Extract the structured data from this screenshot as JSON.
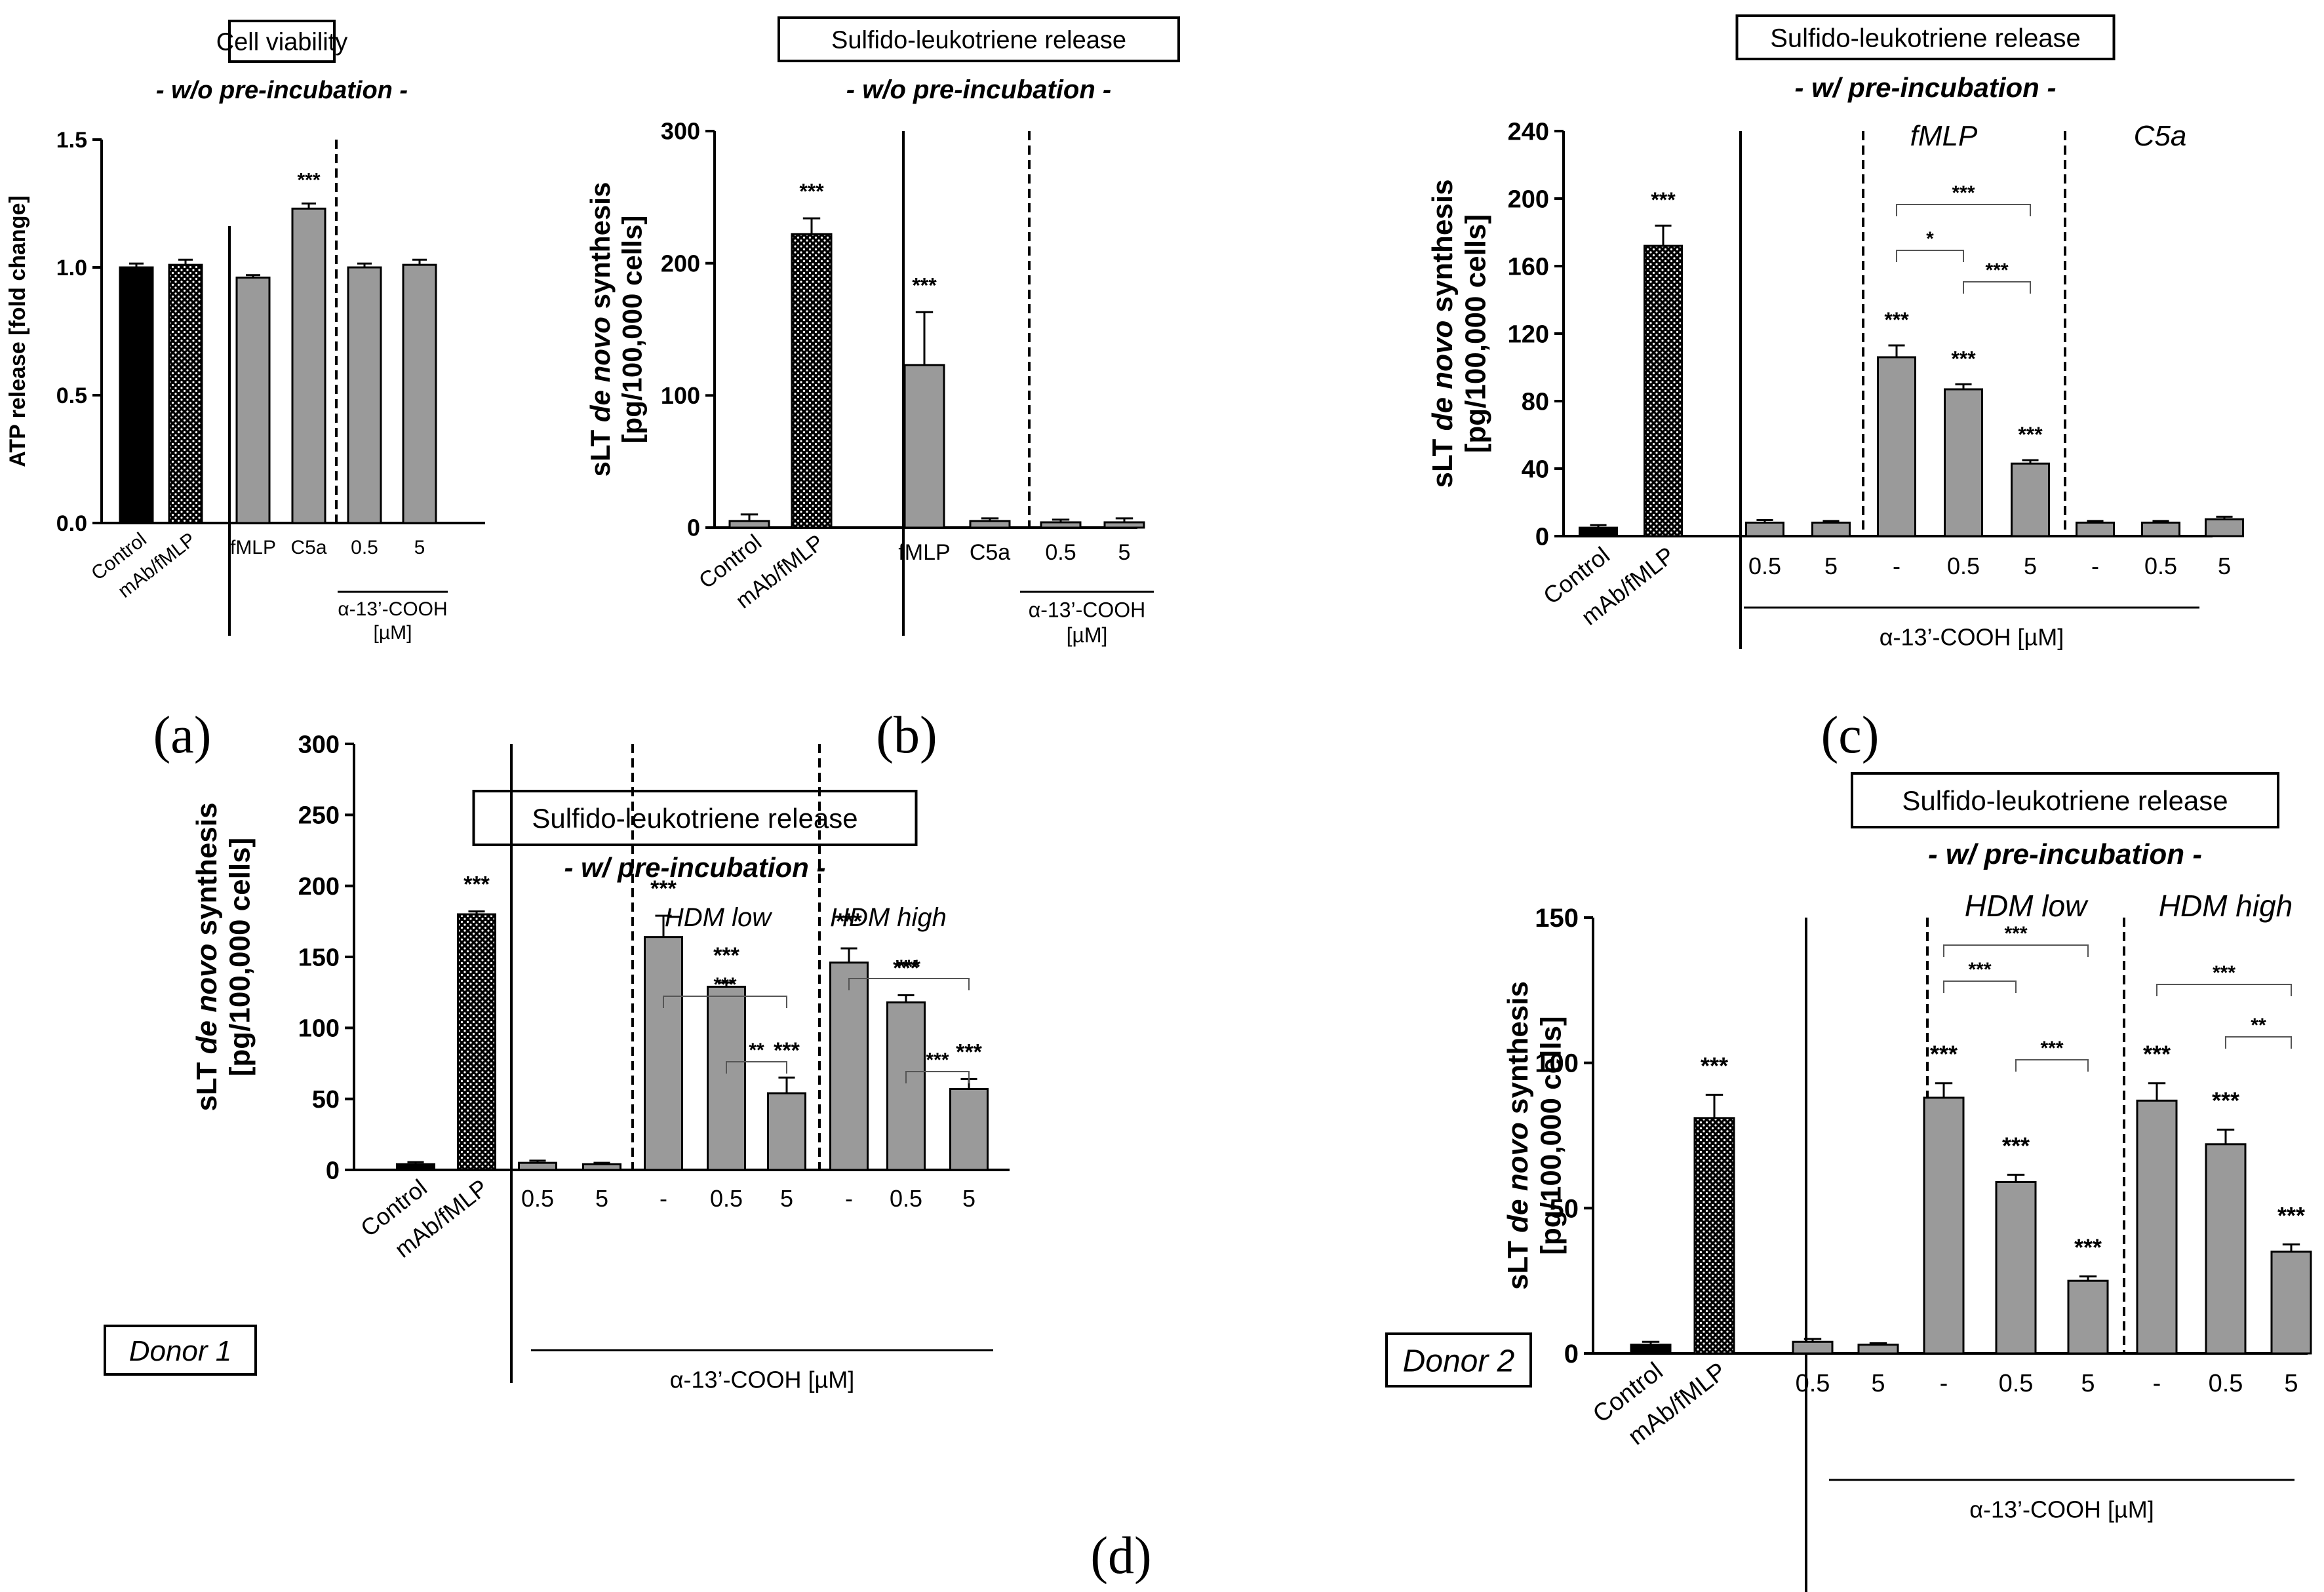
{
  "panel_labels": [
    "(a)",
    "(b)",
    "(c)",
    "(d)"
  ],
  "colors": {
    "black_bar": "#000000",
    "grey_bar": "#9a9a9a",
    "hatched_bar": "#000000",
    "axis": "#000000"
  },
  "chart_data": [
    {
      "id": "a",
      "type": "bar",
      "title": "Cell viability",
      "subtitle": "- w/o pre-incubation -",
      "ylabel": "ATP release [fold change]",
      "ylim": [
        0,
        1.5
      ],
      "yticks": [
        0.0,
        0.5,
        1.0,
        1.5
      ],
      "ytick_labels": [
        "0.0",
        "0.5",
        "1.0",
        "1.5"
      ],
      "categories": [
        "Control",
        "mAb/fMLP",
        "fMLP",
        "C5a",
        "0.5",
        "5"
      ],
      "values": [
        1.0,
        1.01,
        0.96,
        1.23,
        1.0,
        1.01
      ],
      "errors": [
        0.015,
        0.02,
        0.01,
        0.02,
        0.015,
        0.02
      ],
      "styles": [
        "black",
        "hatched",
        "grey",
        "grey",
        "grey",
        "grey"
      ],
      "rotated_labels": [
        true,
        true,
        false,
        false,
        false,
        false
      ],
      "significance": [
        "",
        "",
        "",
        "***",
        "",
        ""
      ],
      "group_label": "α-13’-COOH\n[µM]",
      "group_label_lines": [
        "α-13’-COOH",
        "[µM]"
      ],
      "grid": false
    },
    {
      "id": "b",
      "type": "bar",
      "title": "Sulfido-leukotriene release",
      "subtitle": "- w/o pre-incubation -",
      "ylabel_lines": [
        "sLT de novo synthesis",
        "[pg/100,000 cells]"
      ],
      "ylim": [
        0,
        300
      ],
      "yticks": [
        0,
        100,
        200,
        300
      ],
      "ytick_labels": [
        "0",
        "100",
        "200",
        "300"
      ],
      "categories": [
        "Control",
        "mAb/fMLP",
        "fMLP",
        "C5a",
        "0.5",
        "5"
      ],
      "values": [
        5,
        222,
        123,
        5,
        4,
        4
      ],
      "errors": [
        5,
        12,
        40,
        2,
        2,
        3
      ],
      "styles": [
        "grey",
        "hatched",
        "grey",
        "grey",
        "grey",
        "grey"
      ],
      "rotated_labels": [
        true,
        true,
        false,
        false,
        false,
        false
      ],
      "significance": [
        "",
        "***",
        "***",
        "",
        "",
        ""
      ],
      "group_label_lines": [
        "α-13’-COOH",
        "[µM]"
      ],
      "grid": false
    },
    {
      "id": "c",
      "type": "bar",
      "title": "Sulfido-leukotriene release",
      "subtitle": "- w/ pre-incubation -",
      "ylabel_lines": [
        "sLT de novo synthesis",
        "[pg/100,000 cells]"
      ],
      "ylim": [
        0,
        240
      ],
      "yticks": [
        0,
        40,
        80,
        120,
        160,
        200,
        240
      ],
      "ytick_labels": [
        "0",
        "40",
        "80",
        "120",
        "160",
        "200",
        "240"
      ],
      "categories": [
        "Control",
        "mAb/fMLP",
        "0.5",
        "5",
        "-",
        "0.5",
        "5",
        "-",
        "0.5",
        "5"
      ],
      "values": [
        5,
        172,
        8,
        8,
        106,
        87,
        43,
        8,
        8,
        10
      ],
      "errors": [
        1.5,
        12,
        1.5,
        1,
        7,
        3,
        2,
        1,
        1,
        1.5
      ],
      "styles": [
        "black",
        "hatched",
        "grey",
        "grey",
        "grey",
        "grey",
        "grey",
        "grey",
        "grey",
        "grey"
      ],
      "rotated_labels": [
        true,
        true,
        false,
        false,
        false,
        false,
        false,
        false,
        false,
        false
      ],
      "significance": [
        "",
        "***",
        "",
        "",
        "***",
        "***",
        "***",
        "",
        "",
        ""
      ],
      "section_labels": [
        "fMLP",
        "C5a"
      ],
      "brackets": [
        {
          "from": 4,
          "to": 6,
          "label": "***"
        },
        {
          "from": 4,
          "to": 5,
          "label": "*"
        },
        {
          "from": 5,
          "to": 6,
          "label": "***"
        }
      ],
      "group_label": "α-13’-COOH [µM]",
      "grid": false
    },
    {
      "id": "d1",
      "type": "bar",
      "title": "Sulfido-leukotriene release",
      "subtitle": "- w/ pre-incubation -",
      "donor": "Donor 1",
      "ylabel_lines": [
        "sLT de novo synthesis",
        "[pg/100,000 cells]"
      ],
      "ylim": [
        0,
        300
      ],
      "yticks": [
        0,
        50,
        100,
        150,
        200,
        250,
        300
      ],
      "ytick_labels": [
        "0",
        "50",
        "100",
        "150",
        "200",
        "250",
        "300"
      ],
      "categories": [
        "Control",
        "mAb/fMLP",
        "0.5",
        "5",
        "-",
        "0.5",
        "5",
        "-",
        "0.5",
        "5"
      ],
      "values": [
        4,
        180,
        5,
        4,
        164,
        129,
        54,
        146,
        118,
        57
      ],
      "errors": [
        1.5,
        2,
        1.5,
        1,
        15,
        3,
        11,
        10,
        5,
        7
      ],
      "styles": [
        "black",
        "hatched",
        "grey",
        "grey",
        "grey",
        "grey",
        "grey",
        "grey",
        "grey",
        "grey"
      ],
      "rotated_labels": [
        true,
        true,
        false,
        false,
        false,
        false,
        false,
        false,
        false,
        false
      ],
      "significance": [
        "",
        "***",
        "",
        "",
        "***",
        "***",
        "***",
        "***",
        "***",
        "***"
      ],
      "section_labels": [
        "HDM low",
        "HDM high"
      ],
      "brackets": [
        {
          "from": 4,
          "to": 6,
          "label": "***"
        },
        {
          "from": 5,
          "to": 6,
          "label": "**"
        },
        {
          "from": 7,
          "to": 9,
          "label": "***"
        },
        {
          "from": 8,
          "to": 9,
          "label": "***"
        }
      ],
      "group_label": "α-13’-COOH [µM]",
      "grid": false
    },
    {
      "id": "d2",
      "type": "bar",
      "title": "Sulfido-leukotriene release",
      "subtitle": "- w/ pre-incubation -",
      "donor": "Donor 2",
      "ylabel_lines": [
        "sLT de novo synthesis",
        "[pg/100,000 cells]"
      ],
      "ylim": [
        0,
        150
      ],
      "yticks": [
        0,
        50,
        100,
        150
      ],
      "ytick_labels": [
        "0",
        "50",
        "100",
        "150"
      ],
      "categories": [
        "Control",
        "mAb/fMLP",
        "0.5",
        "5",
        "-",
        "0.5",
        "5",
        "-",
        "0.5",
        "5"
      ],
      "values": [
        3,
        81,
        4,
        3,
        88,
        59,
        25,
        87,
        72,
        35
      ],
      "errors": [
        1,
        8,
        1,
        0.5,
        5,
        2.5,
        1.5,
        6,
        5,
        2.5
      ],
      "styles": [
        "black",
        "hatched",
        "grey",
        "grey",
        "grey",
        "grey",
        "grey",
        "grey",
        "grey",
        "grey"
      ],
      "rotated_labels": [
        true,
        true,
        false,
        false,
        false,
        false,
        false,
        false,
        false,
        false
      ],
      "significance": [
        "",
        "***",
        "",
        "",
        "***",
        "***",
        "***",
        "***",
        "***",
        "***"
      ],
      "section_labels": [
        "HDM low",
        "HDM high"
      ],
      "brackets": [
        {
          "from": 4,
          "to": 6,
          "label": "***"
        },
        {
          "from": 4,
          "to": 5,
          "label": "***"
        },
        {
          "from": 5,
          "to": 6,
          "label": "***"
        },
        {
          "from": 7,
          "to": 9,
          "label": "***"
        },
        {
          "from": 8,
          "to": 9,
          "label": "**"
        }
      ],
      "group_label": "α-13’-COOH [µM]",
      "grid": false
    }
  ]
}
